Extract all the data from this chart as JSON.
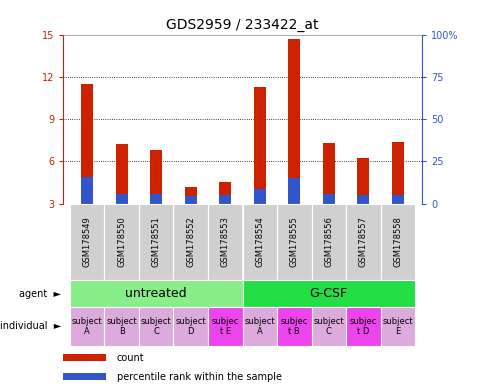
{
  "title": "GDS2959 / 233422_at",
  "samples": [
    "GSM178549",
    "GSM178550",
    "GSM178551",
    "GSM178552",
    "GSM178553",
    "GSM178554",
    "GSM178555",
    "GSM178556",
    "GSM178557",
    "GSM178558"
  ],
  "count_values": [
    11.5,
    7.2,
    6.8,
    4.2,
    4.5,
    11.3,
    14.7,
    7.3,
    6.2,
    7.4
  ],
  "percentile_bottom": [
    3.0,
    3.0,
    3.0,
    3.0,
    3.0,
    3.0,
    3.0,
    3.0,
    3.0,
    3.0
  ],
  "percentile_top": [
    4.9,
    3.7,
    3.7,
    3.5,
    3.6,
    4.0,
    4.8,
    3.7,
    3.6,
    3.6
  ],
  "ylim_left": [
    3,
    15
  ],
  "ylim_right": [
    0,
    100
  ],
  "yticks_left": [
    3,
    6,
    9,
    12,
    15
  ],
  "yticks_right": [
    0,
    25,
    50,
    75,
    100
  ],
  "ytick_labels_right": [
    "0",
    "25",
    "50",
    "75",
    "100%"
  ],
  "bar_color_red": "#cc2200",
  "bar_color_blue": "#3355cc",
  "bar_width": 0.35,
  "blue_bar_width": 0.35,
  "agent_labels": [
    "untreated",
    "G-CSF"
  ],
  "agent_colors": [
    "#88ee88",
    "#22dd44"
  ],
  "individual_labels": [
    "subject\nA",
    "subject\nB",
    "subject\nC",
    "subject\nD",
    "subjec\nt E",
    "subject\nA",
    "subjec\nt B",
    "subject\nC",
    "subjec\nt D",
    "subject\nE"
  ],
  "individual_highlight": [
    4,
    6,
    8
  ],
  "individual_color_normal": "#ddaadd",
  "individual_color_highlight": "#ee44ee",
  "left_axis_color": "#cc2200",
  "right_axis_color": "#3355cc",
  "font_size_title": 10,
  "font_size_ticks": 7,
  "font_size_sample": 6,
  "font_size_agent": 9,
  "font_size_individual": 6,
  "font_size_legend": 7,
  "font_size_side_label": 7
}
